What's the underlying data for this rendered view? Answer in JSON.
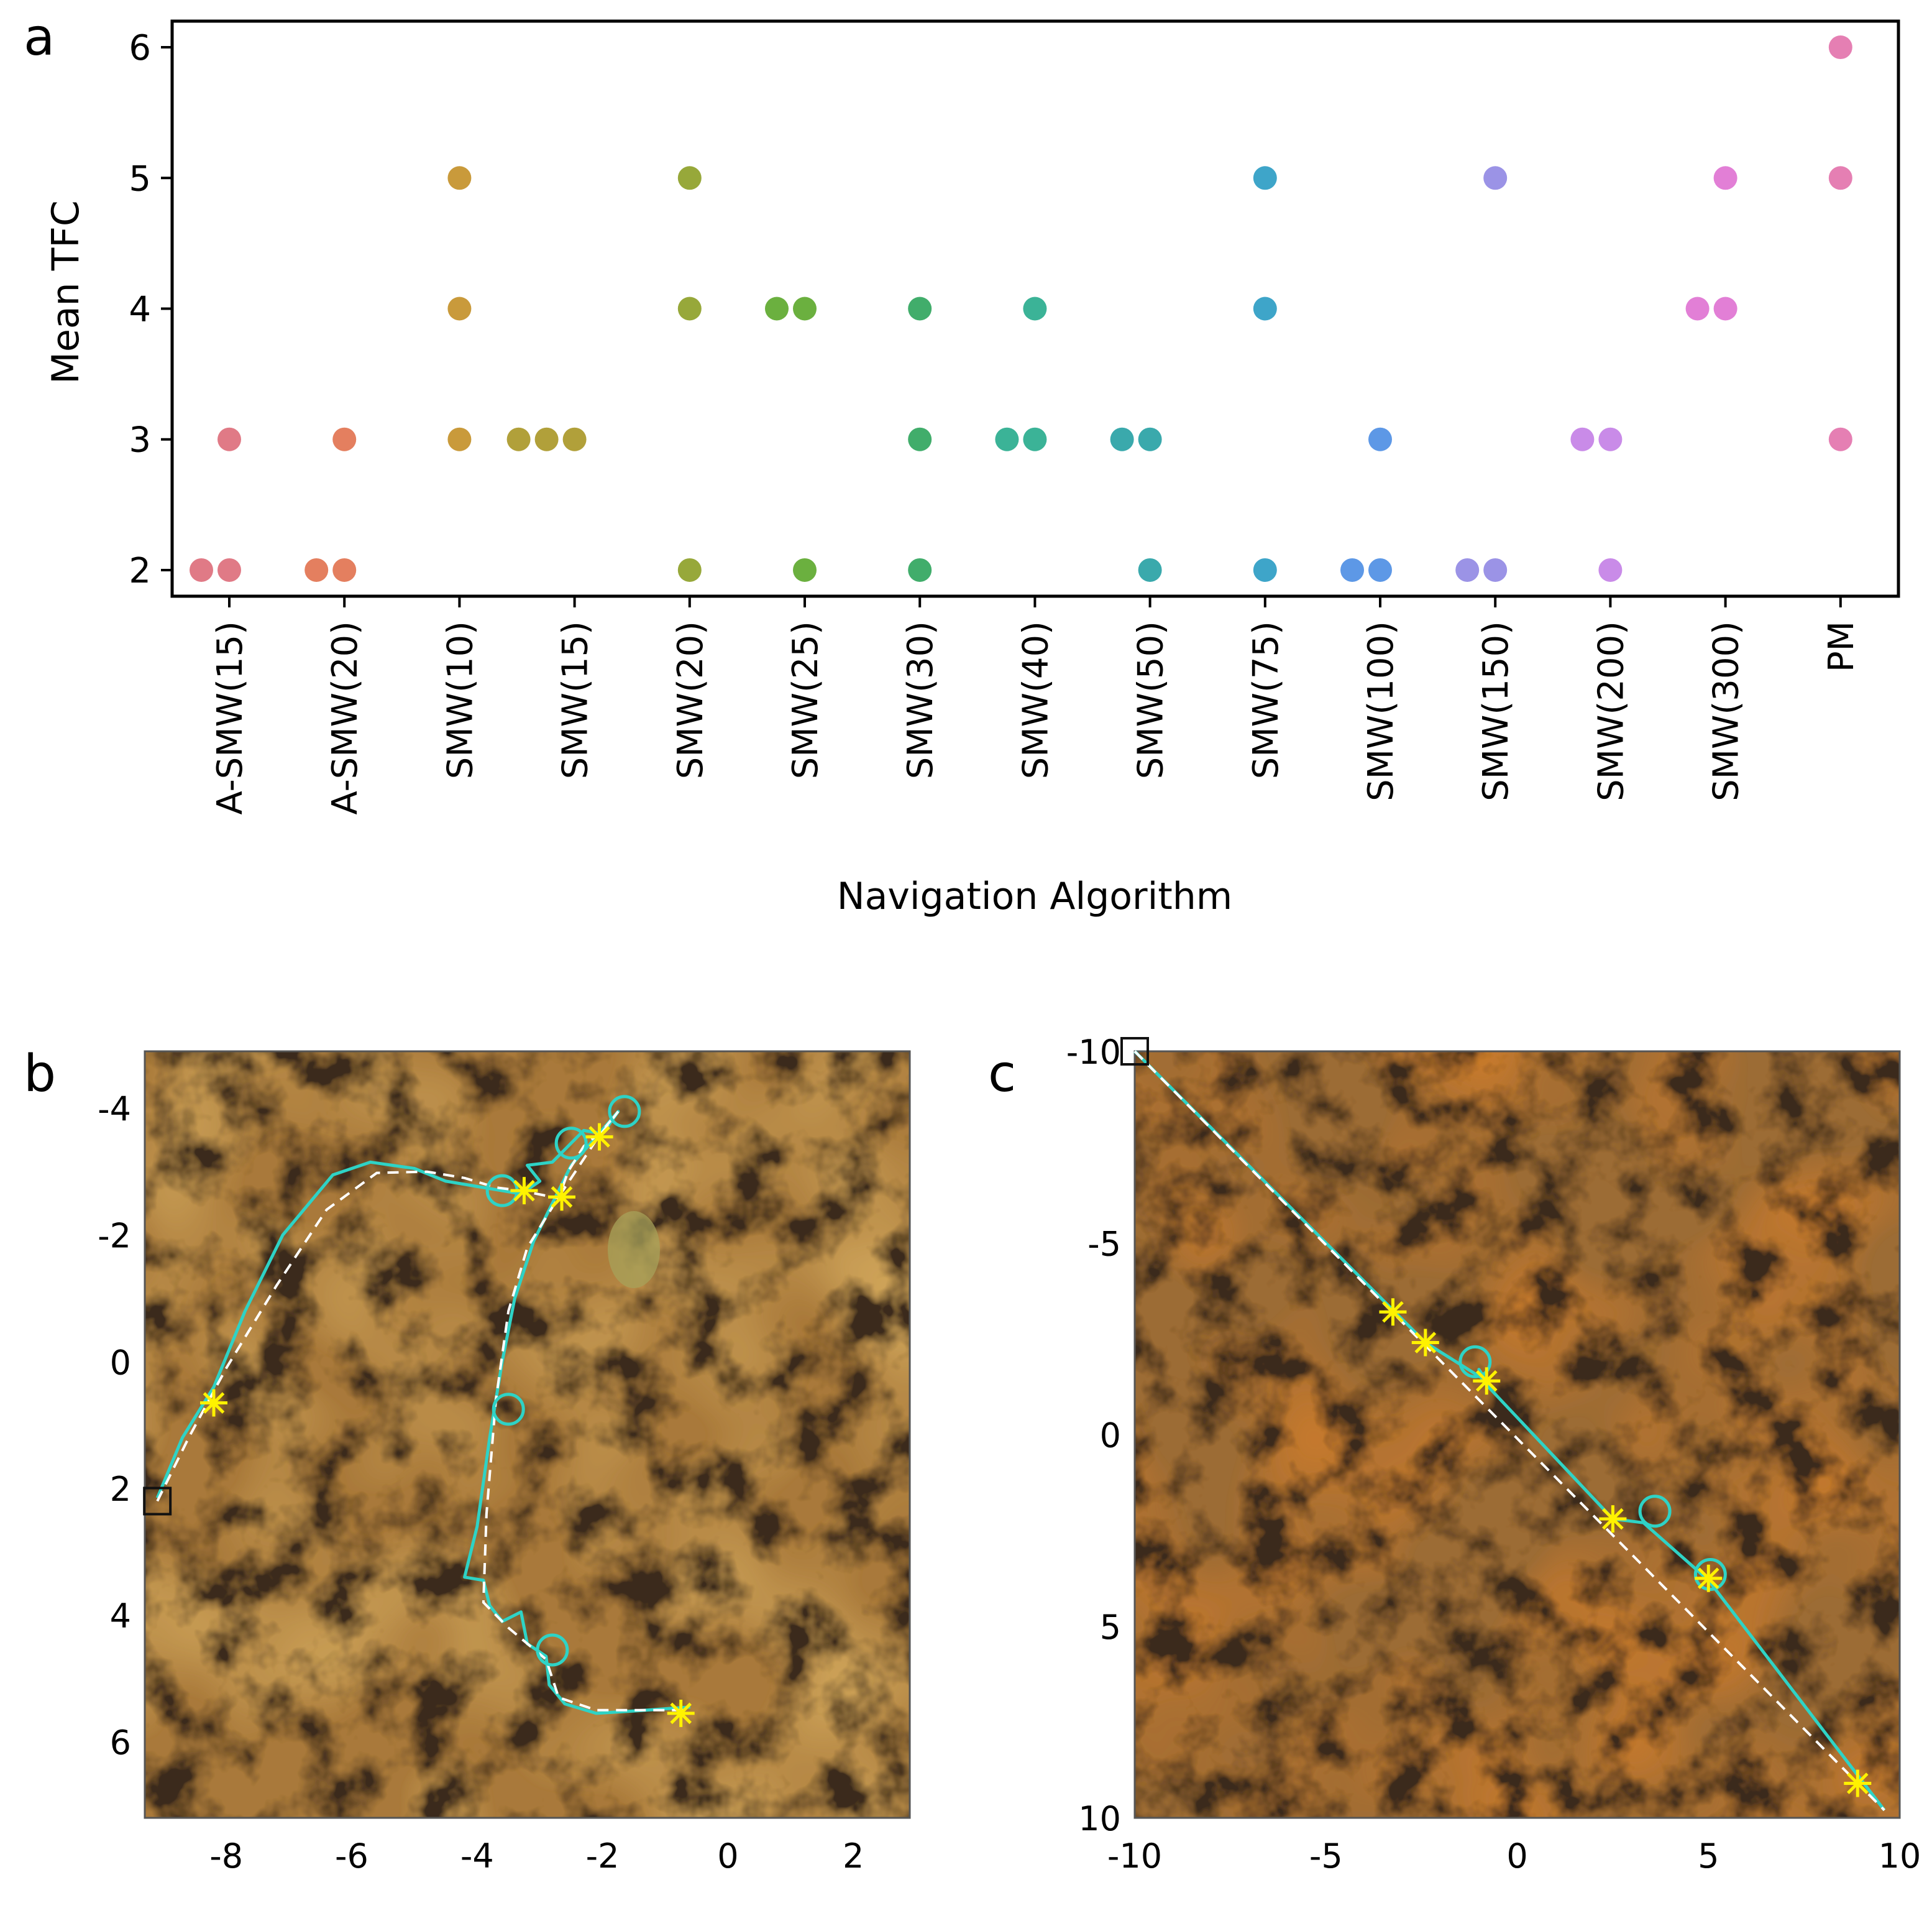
{
  "figure": {
    "panel_a_letter": "a",
    "panel_b_letter": "b",
    "panel_c_letter": "c"
  },
  "colors": {
    "trajectory": "#2ed3c6",
    "reference": "#ffffff",
    "marker_star": "#fff200",
    "terrain_base": "#a9793a",
    "terrain_dark": "#3b2a1c",
    "terrain_light": "#c9a15a",
    "vegetation": "#a7a15a"
  },
  "chart_data": [
    {
      "id": "a",
      "type": "scatter",
      "title": "",
      "xlabel": "Navigation Algorithm",
      "ylabel": "Mean TFC",
      "categories": [
        "A-SMW(15)",
        "A-SMW(20)",
        "SMW(10)",
        "SMW(15)",
        "SMW(20)",
        "SMW(25)",
        "SMW(30)",
        "SMW(40)",
        "SMW(50)",
        "SMW(75)",
        "SMW(100)",
        "SMW(150)",
        "SMW(200)",
        "SMW(300)",
        "PM"
      ],
      "ylim": [
        1.8,
        6.2
      ],
      "yticks": [
        "2",
        "3",
        "4",
        "5",
        "6"
      ],
      "grid": false,
      "legend": "none",
      "series": [
        {
          "name": "A-SMW(15)",
          "color": "#e07a86",
          "points": [
            {
              "y": 2,
              "n": 2
            },
            {
              "y": 3,
              "n": 1
            }
          ]
        },
        {
          "name": "A-SMW(20)",
          "color": "#e47f5f",
          "points": [
            {
              "y": 2,
              "n": 2
            },
            {
              "y": 3,
              "n": 1
            }
          ]
        },
        {
          "name": "SMW(10)",
          "color": "#c99a3b",
          "points": [
            {
              "y": 3,
              "n": 1
            },
            {
              "y": 4,
              "n": 1
            },
            {
              "y": 5,
              "n": 1
            }
          ]
        },
        {
          "name": "SMW(15)",
          "color": "#b1a03a",
          "points": [
            {
              "y": 3,
              "n": 3
            }
          ]
        },
        {
          "name": "SMW(20)",
          "color": "#97a83a",
          "points": [
            {
              "y": 2,
              "n": 1
            },
            {
              "y": 4,
              "n": 1
            },
            {
              "y": 5,
              "n": 1
            }
          ]
        },
        {
          "name": "SMW(25)",
          "color": "#6bb03f",
          "points": [
            {
              "y": 2,
              "n": 1
            },
            {
              "y": 4,
              "n": 2
            }
          ]
        },
        {
          "name": "SMW(30)",
          "color": "#41ad6b",
          "points": [
            {
              "y": 2,
              "n": 1
            },
            {
              "y": 3,
              "n": 1
            },
            {
              "y": 4,
              "n": 1
            }
          ]
        },
        {
          "name": "SMW(40)",
          "color": "#3bb397",
          "points": [
            {
              "y": 3,
              "n": 2
            },
            {
              "y": 4,
              "n": 1
            }
          ]
        },
        {
          "name": "SMW(50)",
          "color": "#3aa9ac",
          "points": [
            {
              "y": 2,
              "n": 1
            },
            {
              "y": 3,
              "n": 2
            }
          ]
        },
        {
          "name": "SMW(75)",
          "color": "#3ea5c9",
          "points": [
            {
              "y": 2,
              "n": 1
            },
            {
              "y": 4,
              "n": 1
            },
            {
              "y": 5,
              "n": 1
            }
          ]
        },
        {
          "name": "SMW(100)",
          "color": "#5d98e6",
          "points": [
            {
              "y": 2,
              "n": 2
            },
            {
              "y": 3,
              "n": 1
            }
          ]
        },
        {
          "name": "SMW(150)",
          "color": "#9b93e6",
          "points": [
            {
              "y": 2,
              "n": 2
            },
            {
              "y": 5,
              "n": 1
            }
          ]
        },
        {
          "name": "SMW(200)",
          "color": "#c98be8",
          "points": [
            {
              "y": 2,
              "n": 1
            },
            {
              "y": 3,
              "n": 2
            }
          ]
        },
        {
          "name": "SMW(300)",
          "color": "#e27fd6",
          "points": [
            {
              "y": 4,
              "n": 2
            },
            {
              "y": 5,
              "n": 1
            }
          ]
        },
        {
          "name": "PM",
          "color": "#e57fb3",
          "points": [
            {
              "y": 3,
              "n": 1
            },
            {
              "y": 5,
              "n": 1
            },
            {
              "y": 6,
              "n": 1
            }
          ]
        }
      ]
    },
    {
      "id": "b",
      "type": "line",
      "title": "",
      "xlabel": "",
      "ylabel": "",
      "xlim": [
        -9.3,
        2.9
      ],
      "ylim": [
        7.2,
        -4.9
      ],
      "xticks": [
        "-8",
        "-6",
        "-4",
        "-2",
        "0",
        "2"
      ],
      "yticks": [
        "-4",
        "-2",
        "0",
        "2",
        "4",
        "6"
      ],
      "start": [
        -9.1,
        2.2
      ],
      "reference_path": [
        [
          -9.1,
          2.2
        ],
        [
          -8.6,
          1.2
        ],
        [
          -8.0,
          0.1
        ],
        [
          -7.2,
          -1.2
        ],
        [
          -6.4,
          -2.4
        ],
        [
          -5.6,
          -2.98
        ],
        [
          -4.8,
          -3.0
        ],
        [
          -4.2,
          -2.9
        ],
        [
          -3.7,
          -2.75
        ],
        [
          -3.3,
          -2.7
        ],
        [
          -2.9,
          -2.62
        ],
        [
          -2.7,
          -2.58
        ],
        [
          -2.55,
          -3.0
        ],
        [
          -2.3,
          -3.4
        ],
        [
          -2.0,
          -3.65
        ],
        [
          -1.75,
          -3.95
        ],
        [
          -2.1,
          -3.5
        ],
        [
          -2.7,
          -2.6
        ],
        [
          -3.2,
          -1.8
        ],
        [
          -3.5,
          -0.8
        ],
        [
          -3.7,
          0.6
        ],
        [
          -3.85,
          2.4
        ],
        [
          -3.9,
          3.8
        ],
        [
          -3.5,
          4.2
        ],
        [
          -2.9,
          4.7
        ],
        [
          -2.7,
          5.3
        ],
        [
          -2.1,
          5.5
        ],
        [
          -0.7,
          5.5
        ]
      ],
      "trajectory_path": [
        [
          -9.1,
          2.15
        ],
        [
          -8.7,
          1.2
        ],
        [
          -8.2,
          0.4
        ],
        [
          -7.7,
          -0.8
        ],
        [
          -7.1,
          -2.0
        ],
        [
          -6.3,
          -2.95
        ],
        [
          -5.7,
          -3.15
        ],
        [
          -5.0,
          -3.05
        ],
        [
          -4.5,
          -2.85
        ],
        [
          -3.9,
          -2.75
        ],
        [
          -3.6,
          -2.7
        ],
        [
          -3.3,
          -2.65
        ],
        [
          -3.0,
          -2.85
        ],
        [
          -3.2,
          -3.1
        ],
        [
          -2.8,
          -3.15
        ],
        [
          -2.5,
          -3.45
        ],
        [
          -2.3,
          -3.65
        ],
        [
          -2.0,
          -3.6
        ],
        [
          -1.75,
          -3.95
        ],
        [
          -2.1,
          -3.55
        ],
        [
          -2.5,
          -3.1
        ],
        [
          -2.75,
          -2.6
        ],
        [
          -3.1,
          -1.9
        ],
        [
          -3.4,
          -1.0
        ],
        [
          -3.6,
          0.0
        ],
        [
          -3.8,
          1.2
        ],
        [
          -4.0,
          2.6
        ],
        [
          -4.2,
          3.4
        ],
        [
          -3.9,
          3.45
        ],
        [
          -3.8,
          3.85
        ],
        [
          -3.6,
          4.1
        ],
        [
          -3.3,
          3.95
        ],
        [
          -3.2,
          4.45
        ],
        [
          -2.9,
          4.65
        ],
        [
          -2.85,
          5.1
        ],
        [
          -2.6,
          5.4
        ],
        [
          -2.1,
          5.55
        ],
        [
          -1.3,
          5.5
        ],
        [
          -0.6,
          5.45
        ]
      ],
      "waypoints_star": [
        [
          -8.2,
          0.65
        ],
        [
          -3.25,
          -2.7
        ],
        [
          -2.65,
          -2.6
        ],
        [
          -2.05,
          -3.55
        ],
        [
          -0.75,
          5.55
        ]
      ],
      "waypoints_circle": [
        [
          -3.6,
          -2.7
        ],
        [
          -2.5,
          -3.45
        ],
        [
          -1.65,
          -3.95
        ],
        [
          -3.5,
          0.75
        ],
        [
          -2.8,
          4.55
        ]
      ]
    },
    {
      "id": "c",
      "type": "line",
      "title": "",
      "xlabel": "",
      "ylabel": "",
      "xlim": [
        -10,
        10
      ],
      "ylim": [
        10,
        -10
      ],
      "xticks": [
        "-10",
        "-5",
        "0",
        "5",
        "10"
      ],
      "yticks": [
        "-10",
        "-5",
        "0",
        "5",
        "10"
      ],
      "start": [
        -10,
        -10
      ],
      "reference_path": [
        [
          -10,
          -10
        ],
        [
          9.6,
          9.8
        ]
      ],
      "trajectory_path": [
        [
          -10,
          -10
        ],
        [
          -3.2,
          -3.2
        ],
        [
          -2.4,
          -2.4
        ],
        [
          -0.8,
          -1.4
        ],
        [
          -1.0,
          -1.7
        ],
        [
          -0.9,
          -1.4
        ],
        [
          2.5,
          2.2
        ],
        [
          3.3,
          2.3
        ],
        [
          5.0,
          3.8
        ],
        [
          9.6,
          9.8
        ]
      ],
      "waypoints_star": [
        [
          -3.25,
          -3.2
        ],
        [
          -2.4,
          -2.4
        ],
        [
          -0.8,
          -1.4
        ],
        [
          2.5,
          2.2
        ],
        [
          5.0,
          3.75
        ],
        [
          8.9,
          9.1
        ]
      ],
      "waypoints_circle": [
        [
          -1.1,
          -1.9
        ],
        [
          3.6,
          2.0
        ],
        [
          5.05,
          3.65
        ]
      ]
    }
  ]
}
